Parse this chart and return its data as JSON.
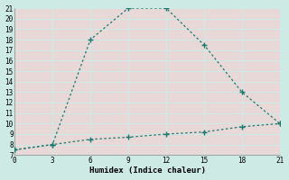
{
  "xlabel": "Humidex (Indice chaleur)",
  "ylabel": "",
  "outer_bg": "#cdeae5",
  "plot_bg": "#e8d8d8",
  "grid_color": "#cdeae5",
  "line_color": "#1a7a6e",
  "xlim": [
    0,
    21
  ],
  "ylim": [
    7,
    21
  ],
  "xticks": [
    0,
    3,
    6,
    9,
    12,
    15,
    18,
    21
  ],
  "yticks": [
    7,
    8,
    9,
    10,
    11,
    12,
    13,
    14,
    15,
    16,
    17,
    18,
    19,
    20,
    21
  ],
  "humidex_x": [
    0,
    3,
    6,
    9,
    12,
    15,
    18,
    21
  ],
  "humidex_y": [
    7.5,
    8.0,
    18.0,
    21.0,
    21.0,
    17.5,
    13.0,
    10.0
  ],
  "temp_x": [
    0,
    3,
    6,
    9,
    12,
    15,
    18,
    21
  ],
  "temp_y": [
    7.5,
    8.0,
    8.5,
    8.7,
    9.0,
    9.2,
    9.7,
    10.0
  ]
}
